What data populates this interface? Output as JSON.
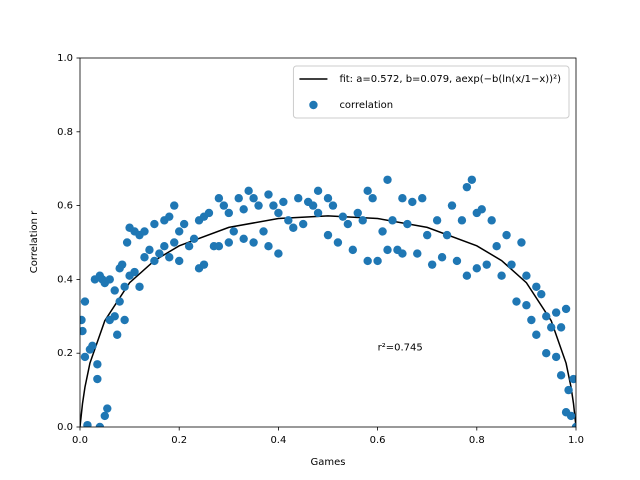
{
  "chart_data": {
    "type": "scatter",
    "xlabel": "Games",
    "ylabel": "Correlation r",
    "annotation": "r²=0.745",
    "legend": "upper right",
    "xlim": [
      0,
      1
    ],
    "ylim": [
      0,
      1
    ],
    "xticks": [
      {
        "value": 0,
        "label": "0.0"
      },
      {
        "value": 0.2,
        "label": "0.2"
      },
      {
        "value": 0.4,
        "label": "0.4"
      },
      {
        "value": 0.6,
        "label": "0.6"
      },
      {
        "value": 0.8,
        "label": "0.8"
      },
      {
        "value": 1,
        "label": "1.0"
      }
    ],
    "yticks": [
      {
        "value": 0,
        "label": "0.0"
      },
      {
        "value": 0.2,
        "label": "0.2"
      },
      {
        "value": 0.4,
        "label": "0.4"
      },
      {
        "value": 0.6,
        "label": "0.6"
      },
      {
        "value": 0.8,
        "label": "0.8"
      },
      {
        "value": 1,
        "label": "1.0"
      }
    ],
    "series": [
      {
        "name": "fit: a=0.572, b=0.079, aexp(−b(ln(x/1−x))²)",
        "type": "line",
        "color": "#000000",
        "x": [
          0,
          0.001,
          0.005,
          0.01,
          0.02,
          0.05,
          0.1,
          0.15,
          0.2,
          0.3,
          0.4,
          0.5,
          0.6,
          0.7,
          0.8,
          0.85,
          0.9,
          0.95,
          0.98,
          0.99,
          0.995,
          0.999,
          1
        ],
        "values": [
          0,
          0.013,
          0.063,
          0.108,
          0.173,
          0.288,
          0.391,
          0.451,
          0.491,
          0.541,
          0.565,
          0.572,
          0.565,
          0.541,
          0.491,
          0.451,
          0.391,
          0.288,
          0.173,
          0.108,
          0.063,
          0.013,
          0
        ]
      },
      {
        "name": "correlation",
        "type": "scatter",
        "color": "#1f77b4",
        "x": [
          0.003,
          0.005,
          0.01,
          0.01,
          0.015,
          0.02,
          0.025,
          0.03,
          0.035,
          0.04,
          0.035,
          0.04,
          0.045,
          0.05,
          0.055,
          0.05,
          0.06,
          0.06,
          0.07,
          0.07,
          0.075,
          0.08,
          0.08,
          0.085,
          0.09,
          0.09,
          0.095,
          0.1,
          0.1,
          0.11,
          0.11,
          0.12,
          0.12,
          0.13,
          0.13,
          0.14,
          0.15,
          0.15,
          0.16,
          0.17,
          0.17,
          0.18,
          0.18,
          0.19,
          0.19,
          0.2,
          0.2,
          0.21,
          0.22,
          0.23,
          0.24,
          0.24,
          0.25,
          0.25,
          0.26,
          0.27,
          0.28,
          0.28,
          0.29,
          0.3,
          0.3,
          0.31,
          0.32,
          0.33,
          0.33,
          0.34,
          0.35,
          0.35,
          0.36,
          0.37,
          0.38,
          0.38,
          0.39,
          0.4,
          0.4,
          0.41,
          0.42,
          0.43,
          0.44,
          0.45,
          0.46,
          0.47,
          0.48,
          0.48,
          0.5,
          0.5,
          0.51,
          0.52,
          0.53,
          0.54,
          0.55,
          0.56,
          0.57,
          0.58,
          0.58,
          0.59,
          0.6,
          0.61,
          0.62,
          0.62,
          0.63,
          0.64,
          0.65,
          0.65,
          0.66,
          0.67,
          0.68,
          0.69,
          0.7,
          0.71,
          0.72,
          0.73,
          0.74,
          0.75,
          0.76,
          0.77,
          0.78,
          0.78,
          0.79,
          0.8,
          0.8,
          0.81,
          0.82,
          0.83,
          0.84,
          0.85,
          0.86,
          0.87,
          0.88,
          0.89,
          0.9,
          0.9,
          0.91,
          0.92,
          0.92,
          0.93,
          0.94,
          0.94,
          0.95,
          0.96,
          0.96,
          0.97,
          0.97,
          0.98,
          0.98,
          0.985,
          0.99,
          0.995,
          1.0
        ],
        "values": [
          0.29,
          0.26,
          0.34,
          0.19,
          0.005,
          0.21,
          0.22,
          0.4,
          0.17,
          0.41,
          0.13,
          0.0,
          0.4,
          0.03,
          0.05,
          0.39,
          0.4,
          0.29,
          0.3,
          0.37,
          0.25,
          0.34,
          0.43,
          0.44,
          0.38,
          0.29,
          0.5,
          0.54,
          0.41,
          0.53,
          0.42,
          0.52,
          0.38,
          0.46,
          0.53,
          0.48,
          0.55,
          0.45,
          0.47,
          0.56,
          0.49,
          0.57,
          0.46,
          0.6,
          0.5,
          0.53,
          0.45,
          0.55,
          0.49,
          0.51,
          0.43,
          0.56,
          0.57,
          0.44,
          0.58,
          0.49,
          0.62,
          0.49,
          0.6,
          0.58,
          0.5,
          0.53,
          0.62,
          0.59,
          0.51,
          0.64,
          0.62,
          0.5,
          0.6,
          0.53,
          0.63,
          0.49,
          0.6,
          0.58,
          0.47,
          0.61,
          0.56,
          0.54,
          0.62,
          0.55,
          0.61,
          0.6,
          0.64,
          0.58,
          0.62,
          0.52,
          0.6,
          0.5,
          0.57,
          0.55,
          0.48,
          0.58,
          0.56,
          0.64,
          0.45,
          0.62,
          0.45,
          0.53,
          0.67,
          0.48,
          0.56,
          0.48,
          0.62,
          0.47,
          0.55,
          0.61,
          0.47,
          0.62,
          0.52,
          0.44,
          0.56,
          0.46,
          0.52,
          0.6,
          0.45,
          0.56,
          0.65,
          0.41,
          0.67,
          0.58,
          0.43,
          0.59,
          0.44,
          0.56,
          0.49,
          0.41,
          0.52,
          0.44,
          0.34,
          0.5,
          0.33,
          0.41,
          0.29,
          0.38,
          0.25,
          0.36,
          0.2,
          0.3,
          0.27,
          0.19,
          0.31,
          0.14,
          0.27,
          0.32,
          0.04,
          0.1,
          0.03,
          0.13,
          0.0
        ]
      }
    ]
  }
}
